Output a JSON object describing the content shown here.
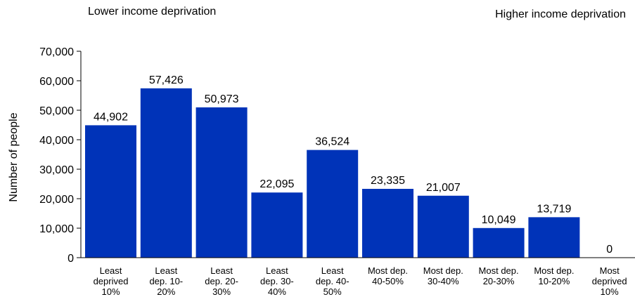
{
  "chart_data": {
    "type": "bar",
    "annotations": {
      "left": "Lower income deprivation",
      "right": "Higher income deprivation"
    },
    "ylabel": "Number of people",
    "xlabel": "",
    "ylim": [
      0,
      70000
    ],
    "yticks": [
      {
        "value": 0,
        "label": "0"
      },
      {
        "value": 10000,
        "label": "10,000"
      },
      {
        "value": 20000,
        "label": "20,000"
      },
      {
        "value": 30000,
        "label": "30,000"
      },
      {
        "value": 40000,
        "label": "40,000"
      },
      {
        "value": 50000,
        "label": "50,000"
      },
      {
        "value": 60000,
        "label": "60,000"
      },
      {
        "value": 70000,
        "label": "70,000"
      }
    ],
    "categories": [
      [
        "Least",
        "deprived",
        "10%"
      ],
      [
        "Least",
        "dep. 10-",
        "20%"
      ],
      [
        "Least",
        "dep. 20-",
        "30%"
      ],
      [
        "Least",
        "dep. 30-",
        "40%"
      ],
      [
        "Least",
        "dep. 40-",
        "50%"
      ],
      [
        "Most dep.",
        "40-50%"
      ],
      [
        "Most dep.",
        "30-40%"
      ],
      [
        "Most dep.",
        "20-30%"
      ],
      [
        "Most dep.",
        "10-20%"
      ],
      [
        "Most",
        "deprived",
        "10%"
      ]
    ],
    "values": [
      44902,
      57426,
      50973,
      22095,
      36524,
      23335,
      21007,
      10049,
      13719,
      0
    ],
    "value_labels": [
      "44,902",
      "57,426",
      "50,973",
      "22,095",
      "36,524",
      "23,335",
      "21,007",
      "10,049",
      "13,719",
      "0"
    ],
    "bar_color": "#0033b8",
    "grid": false,
    "legend": "none"
  }
}
